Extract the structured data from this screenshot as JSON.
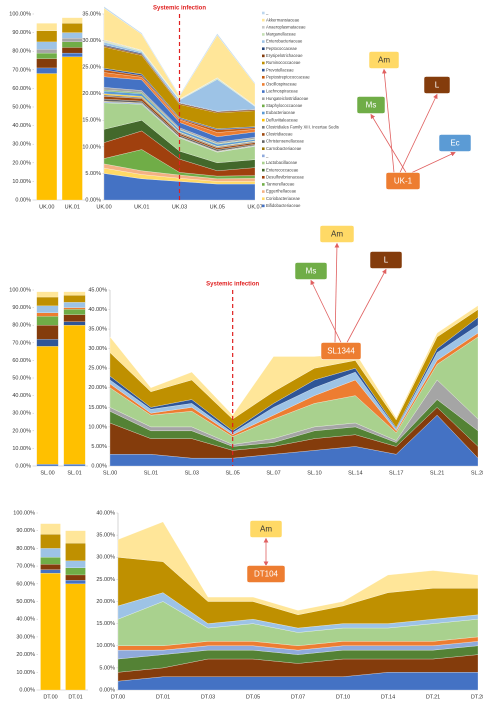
{
  "chart_data": [
    {
      "type": "bar",
      "stacked": true,
      "categories": [
        "UK.00",
        "UK.01"
      ],
      "ylim": [
        0,
        100
      ],
      "yticks": [
        {
          "value": 0,
          "label": "0.00%"
        },
        {
          "value": 10,
          "label": "10.00%"
        },
        {
          "value": 20,
          "label": "20.00%"
        },
        {
          "value": 30,
          "label": "30.00%"
        },
        {
          "value": 40,
          "label": "40.00%"
        },
        {
          "value": 50,
          "label": "50.00%"
        },
        {
          "value": 60,
          "label": "60.00%"
        },
        {
          "value": 70,
          "label": "70.00%"
        },
        {
          "value": 80,
          "label": "80.00%"
        },
        {
          "value": 90,
          "label": "90.00%"
        },
        {
          "value": 100,
          "label": "100.00%"
        }
      ],
      "series": [
        {
          "color": "#ffe699",
          "values": [
            4,
            3
          ]
        },
        {
          "color": "#bf9000",
          "values": [
            6,
            5
          ]
        },
        {
          "color": "#9dc3e6",
          "values": [
            4,
            3
          ]
        },
        {
          "color": "#a5a5a5",
          "values": [
            2,
            2
          ]
        },
        {
          "color": "#70ad47",
          "values": [
            3,
            3
          ]
        },
        {
          "color": "#843c0c",
          "values": [
            5,
            3
          ]
        },
        {
          "color": "#4472c4",
          "values": [
            3,
            2
          ]
        },
        {
          "color": "#ffc000",
          "values": [
            68,
            77
          ]
        }
      ]
    },
    {
      "type": "area",
      "stacked": true,
      "categories": [
        "UK.00",
        "UK.01",
        "UK.03",
        "UK.05",
        "UK.07"
      ],
      "ylim": [
        0,
        35
      ],
      "yticks": [
        {
          "value": 0,
          "label": "0.00%"
        },
        {
          "value": 5,
          "label": "5.00%"
        },
        {
          "value": 10,
          "label": "10.00%"
        },
        {
          "value": 15,
          "label": "15.00%"
        },
        {
          "value": 20,
          "label": "20.00%"
        },
        {
          "value": 25,
          "label": "25.00%"
        },
        {
          "value": 30,
          "label": "30.00%"
        },
        {
          "value": 35,
          "label": "35.00%"
        }
      ],
      "annotation": {
        "text": "Systemic infection",
        "at": "UK.03"
      },
      "series": [
        {
          "name": "_",
          "color": "#bdd7ee",
          "values": [
            0.3,
            0.2,
            0.2,
            0.3,
            0.2
          ]
        },
        {
          "name": "Akkermansiaceae",
          "color": "#ffe699",
          "values": [
            6,
            3,
            0.5,
            8,
            4
          ]
        },
        {
          "name": "Anaeroplasmataceae",
          "color": "#c9c9c9",
          "values": [
            0.2,
            0.1,
            0.1,
            0.1,
            0.1
          ]
        },
        {
          "name": "Marganellaceae",
          "color": "#c5e0b4",
          "values": [
            0.2,
            0.2,
            0.1,
            0.2,
            0.1
          ]
        },
        {
          "name": "Enterobacteriaceae",
          "color": "#9dc3e6",
          "values": [
            0.5,
            0.3,
            0.5,
            6,
            0.5
          ]
        },
        {
          "name": "Peptococcaceae",
          "color": "#264478",
          "values": [
            0.2,
            0.2,
            0.1,
            0.1,
            0.1
          ]
        },
        {
          "name": "Erysipelotrichaceae",
          "color": "#843c0c",
          "values": [
            0.2,
            0.2,
            0.2,
            0.2,
            0.2
          ]
        },
        {
          "name": "Ruminococcaceae",
          "color": "#bf9000",
          "values": [
            4,
            3.5,
            2.5,
            3,
            3
          ]
        },
        {
          "name": "Prevotellaceae",
          "color": "#2f5597",
          "values": [
            0.3,
            0.3,
            0.2,
            0.2,
            0.2
          ]
        },
        {
          "name": "Peptostreptococcaceae",
          "color": "#c55a11",
          "values": [
            0.5,
            0.3,
            0.2,
            0.5,
            0.3
          ]
        },
        {
          "name": "Oscillospiraceae",
          "color": "#ed7d31",
          "values": [
            0.8,
            0.5,
            0.5,
            0.8,
            0.5
          ]
        },
        {
          "name": "Lachnospiraceae",
          "color": "#4472c4",
          "values": [
            2,
            2,
            1,
            1,
            1
          ]
        },
        {
          "name": "Hungateiclostridiaceae",
          "color": "#a5a5a5",
          "values": [
            0.5,
            0.4,
            0.3,
            0.3,
            0.3
          ]
        },
        {
          "name": "Staphylococcaceae",
          "color": "#70ad47",
          "values": [
            0.2,
            0.2,
            0.1,
            0.1,
            0.1
          ]
        },
        {
          "name": "Eubacteriaceae",
          "color": "#5b9bd5",
          "values": [
            0.5,
            0.5,
            0.4,
            0.4,
            0.3
          ]
        },
        {
          "name": "Defluviitaleaceae",
          "color": "#ffc000",
          "values": [
            0.2,
            0.2,
            0.1,
            0.1,
            0.1
          ]
        },
        {
          "name": "Clostridiales Family XIII. Incertae Sedis",
          "color": "#7f7f7f",
          "values": [
            0.3,
            0.2,
            0.2,
            0.2,
            0.2
          ]
        },
        {
          "name": "Clostridiaceae",
          "color": "#9e480e",
          "values": [
            0.5,
            0.5,
            0.3,
            0.3,
            0.3
          ]
        },
        {
          "name": "Christensenellaceae",
          "color": "#636363",
          "values": [
            0.4,
            0.3,
            0.3,
            0.3,
            0.2
          ]
        },
        {
          "name": "Carnobacteriaceae",
          "color": "#997300",
          "values": [
            0.1,
            0.1,
            0.1,
            0.1,
            0.1
          ]
        },
        {
          "name": "_",
          "color": "#8faadc",
          "values": [
            0.2,
            0.2,
            0.1,
            0.1,
            0.1
          ]
        },
        {
          "name": "Lactobacillaceae",
          "color": "#a9d18e",
          "values": [
            5,
            3,
            2.5,
            2,
            2.5
          ]
        },
        {
          "name": "Enterococcaceae",
          "color": "#43682b",
          "values": [
            2.5,
            2,
            1.5,
            1.5,
            1.5
          ]
        },
        {
          "name": "Desulfovibrionaceae",
          "color": "#a0400e",
          "values": [
            3,
            3.5,
            2.5,
            1,
            1.5
          ]
        },
        {
          "name": "Tannerellaceae",
          "color": "#70ad47",
          "values": [
            1,
            4,
            0.5,
            0.5,
            0.5
          ]
        },
        {
          "name": "Eggerthellaceae",
          "color": "#f4b183",
          "values": [
            0.8,
            0.7,
            0.6,
            0.5,
            0.6
          ]
        },
        {
          "name": "Coriobacteriaceae",
          "color": "#ffd966",
          "values": [
            1,
            0.8,
            0.6,
            0.5,
            0.5
          ]
        },
        {
          "name": "Bifidobacteriaceae",
          "color": "#4472c4",
          "values": [
            5,
            4,
            3.5,
            3,
            3
          ]
        }
      ]
    },
    {
      "type": "bar",
      "stacked": true,
      "categories": [
        "SL.00",
        "SL.01"
      ],
      "ylim": [
        0,
        100
      ],
      "yticks": [
        {
          "value": 0,
          "label": "0.00%"
        },
        {
          "value": 10,
          "label": "10.00%"
        },
        {
          "value": 20,
          "label": "20.00%"
        },
        {
          "value": 30,
          "label": "30.00%"
        },
        {
          "value": 40,
          "label": "40.00%"
        },
        {
          "value": 50,
          "label": "50.00%"
        },
        {
          "value": 60,
          "label": "60.00%"
        },
        {
          "value": 70,
          "label": "70.00%"
        },
        {
          "value": 80,
          "label": "80.00%"
        },
        {
          "value": 90,
          "label": "90.00%"
        },
        {
          "value": 100,
          "label": "100.00%"
        }
      ],
      "series": [
        {
          "color": "#ffe699",
          "values": [
            3,
            2
          ]
        },
        {
          "color": "#bf9000",
          "values": [
            5,
            4
          ]
        },
        {
          "color": "#9dc3e6",
          "values": [
            4,
            3
          ]
        },
        {
          "color": "#ed7d31",
          "values": [
            2,
            1
          ]
        },
        {
          "color": "#70ad47",
          "values": [
            5,
            3
          ]
        },
        {
          "color": "#843c0c",
          "values": [
            8,
            4
          ]
        },
        {
          "color": "#2f5597",
          "values": [
            4,
            2
          ]
        },
        {
          "color": "#ffc000",
          "values": [
            67,
            79
          ]
        },
        {
          "color": "#4472c4",
          "values": [
            1,
            1
          ]
        }
      ]
    },
    {
      "type": "area",
      "stacked": true,
      "categories": [
        "SL.00",
        "SL.01",
        "SL.03",
        "SL.05",
        "SL.07",
        "SL.10",
        "SL.14",
        "SL.17",
        "SL.21",
        "SL.28"
      ],
      "ylim": [
        0,
        45
      ],
      "yticks": [
        {
          "value": 0,
          "label": "0.00%"
        },
        {
          "value": 5,
          "label": "5.00%"
        },
        {
          "value": 10,
          "label": "10.00%"
        },
        {
          "value": 15,
          "label": "15.00%"
        },
        {
          "value": 20,
          "label": "20.00%"
        },
        {
          "value": 25,
          "label": "25.00%"
        },
        {
          "value": 30,
          "label": "30.00%"
        },
        {
          "value": 35,
          "label": "35.00%"
        },
        {
          "value": 40,
          "label": "40.00%"
        },
        {
          "value": 45,
          "label": "45.00%"
        }
      ],
      "annotation": {
        "text": "Systemic infection",
        "at": "SL.05"
      },
      "series": [
        {
          "color": "#ffe699",
          "values": [
            4,
            1,
            2,
            1,
            9,
            3,
            2,
            0.5,
            1,
            1
          ]
        },
        {
          "color": "#bf9000",
          "values": [
            6,
            4,
            5,
            3,
            3,
            3,
            2,
            2,
            3,
            2
          ]
        },
        {
          "color": "#2f5597",
          "values": [
            1,
            0.5,
            1,
            0.5,
            1,
            2,
            1,
            0.3,
            1,
            2
          ]
        },
        {
          "color": "#9dc3e6",
          "values": [
            1,
            1,
            1,
            0.5,
            2,
            2,
            2,
            0.5,
            2,
            2
          ]
        },
        {
          "color": "#ed7d31",
          "values": [
            1,
            0.5,
            1,
            0.5,
            1,
            2,
            4,
            0.5,
            1,
            1
          ]
        },
        {
          "color": "#a9d18e",
          "values": [
            5,
            3,
            4,
            2,
            5,
            6,
            7,
            2,
            4,
            21
          ]
        },
        {
          "color": "#a5a5a5",
          "values": [
            1,
            1,
            1,
            0.5,
            1,
            1,
            1,
            0.5,
            5,
            3
          ]
        },
        {
          "color": "#548235",
          "values": [
            3,
            2,
            2,
            1,
            1,
            2,
            2,
            1,
            2,
            4
          ]
        },
        {
          "color": "#843c0c",
          "values": [
            8,
            4,
            5,
            2,
            2,
            3,
            3,
            2,
            2,
            3
          ]
        },
        {
          "color": "#4472c4",
          "values": [
            3,
            3,
            2,
            2,
            3,
            4,
            5,
            3,
            13,
            2
          ]
        }
      ]
    },
    {
      "type": "bar",
      "stacked": true,
      "categories": [
        "DT.00",
        "DT.01"
      ],
      "ylim": [
        0,
        100
      ],
      "yticks": [
        {
          "value": 0,
          "label": "0.00%"
        },
        {
          "value": 10,
          "label": "10.00%"
        },
        {
          "value": 20,
          "label": "20.00%"
        },
        {
          "value": 30,
          "label": "30.00%"
        },
        {
          "value": 40,
          "label": "40.00%"
        },
        {
          "value": 50,
          "label": "50.00%"
        },
        {
          "value": 60,
          "label": "60.00%"
        },
        {
          "value": 70,
          "label": "70.00%"
        },
        {
          "value": 80,
          "label": "80.00%"
        },
        {
          "value": 90,
          "label": "90.00%"
        },
        {
          "value": 100,
          "label": "100.00%"
        }
      ],
      "series": [
        {
          "color": "#ffe699",
          "values": [
            6,
            7
          ]
        },
        {
          "color": "#bf9000",
          "values": [
            8,
            10
          ]
        },
        {
          "color": "#9dc3e6",
          "values": [
            5,
            4
          ]
        },
        {
          "color": "#70ad47",
          "values": [
            4,
            4
          ]
        },
        {
          "color": "#843c0c",
          "values": [
            3,
            3
          ]
        },
        {
          "color": "#4472c4",
          "values": [
            2,
            2
          ]
        },
        {
          "color": "#ffc000",
          "values": [
            66,
            60
          ]
        }
      ]
    },
    {
      "type": "area",
      "stacked": true,
      "categories": [
        "DT.00",
        "DT.01",
        "DT.03",
        "DT.05",
        "DT.07",
        "DT.10",
        "DT.14",
        "DT.21",
        "DT.28"
      ],
      "ylim": [
        0,
        40
      ],
      "yticks": [
        {
          "value": 0,
          "label": "0.00%"
        },
        {
          "value": 5,
          "label": "5.00%"
        },
        {
          "value": 10,
          "label": "10.00%"
        },
        {
          "value": 15,
          "label": "15.00%"
        },
        {
          "value": 20,
          "label": "20.00%"
        },
        {
          "value": 25,
          "label": "25.00%"
        },
        {
          "value": 30,
          "label": "30.00%"
        },
        {
          "value": 35,
          "label": "35.00%"
        },
        {
          "value": 40,
          "label": "40.00%"
        }
      ],
      "series": [
        {
          "color": "#ffe699",
          "values": [
            4,
            9,
            1,
            1,
            1,
            1,
            4,
            4,
            3
          ]
        },
        {
          "color": "#bf9000",
          "values": [
            11,
            7,
            5,
            4,
            3,
            4,
            7,
            7,
            6
          ]
        },
        {
          "color": "#9dc3e6",
          "values": [
            3,
            2,
            1,
            1,
            1,
            1,
            1,
            1,
            1
          ]
        },
        {
          "color": "#a9d18e",
          "values": [
            6,
            10,
            3,
            4,
            3,
            3,
            3,
            4,
            4
          ]
        },
        {
          "color": "#ed7d31",
          "values": [
            1,
            1,
            1,
            1,
            1,
            1,
            1,
            1,
            1
          ]
        },
        {
          "color": "#8faadc",
          "values": [
            2,
            1,
            1,
            1,
            1,
            1,
            1,
            1,
            1
          ]
        },
        {
          "color": "#548235",
          "values": [
            3,
            3,
            2,
            2,
            2,
            2,
            2,
            2,
            2
          ]
        },
        {
          "color": "#843c0c",
          "values": [
            2,
            2,
            4,
            4,
            3,
            4,
            3,
            3,
            4
          ]
        },
        {
          "color": "#4472c4",
          "values": [
            2,
            3,
            3,
            3,
            3,
            3,
            4,
            4,
            4
          ]
        }
      ]
    }
  ],
  "diagrams": [
    {
      "target": {
        "label": "UK-1",
        "color": "#ed7d31"
      },
      "sources": [
        {
          "label": "Am",
          "color": "#ffd966"
        },
        {
          "label": "L",
          "color": "#843c0c"
        },
        {
          "label": "Ms",
          "color": "#70ad47"
        },
        {
          "label": "Ec",
          "color": "#5b9bd5"
        }
      ]
    },
    {
      "target": {
        "label": "SL1344",
        "color": "#ed7d31"
      },
      "sources": [
        {
          "label": "Am",
          "color": "#ffd966"
        },
        {
          "label": "Ms",
          "color": "#70ad47"
        },
        {
          "label": "L",
          "color": "#843c0c"
        }
      ]
    },
    {
      "target": {
        "label": "DT104",
        "color": "#ed7d31"
      },
      "sources": [
        {
          "label": "Am",
          "color": "#ffd966"
        }
      ]
    }
  ]
}
